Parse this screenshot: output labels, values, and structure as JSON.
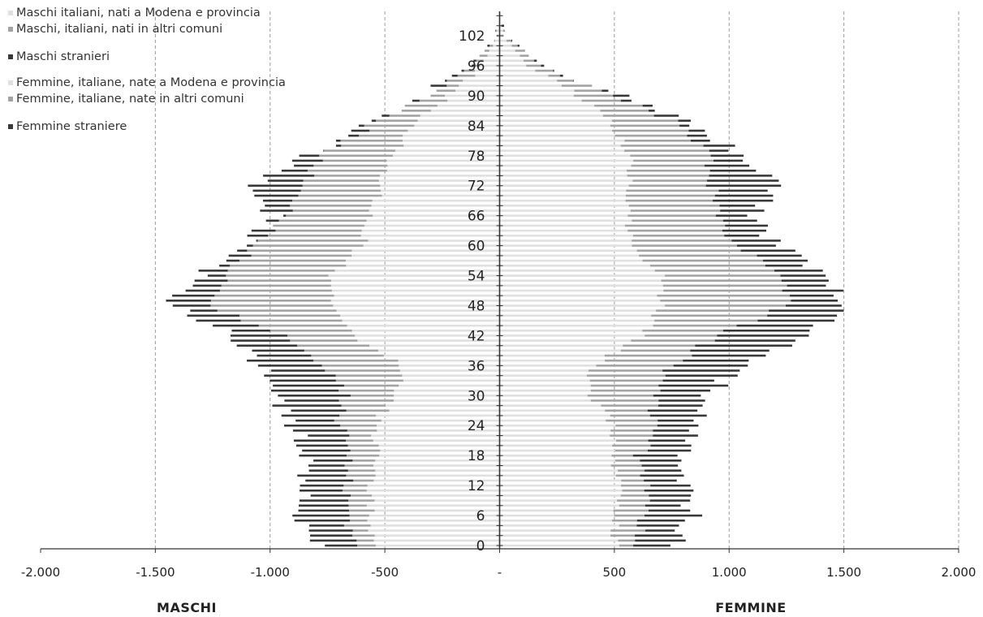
{
  "chart_data": {
    "type": "bar",
    "orientation": "horizontal",
    "layout": "population-pyramid",
    "xlim": [
      -2000,
      2000
    ],
    "x_ticks": [
      -2000,
      -1500,
      -1000,
      -500,
      0,
      500,
      1000,
      1500,
      2000
    ],
    "x_tick_labels": [
      "-2.000",
      "-1.500",
      "-1.000",
      "-500",
      "-",
      "500",
      "1.000",
      "1.500",
      "2.000"
    ],
    "ylim": [
      0,
      106
    ],
    "y_ticks": [
      0,
      6,
      12,
      18,
      24,
      30,
      36,
      42,
      48,
      54,
      60,
      66,
      72,
      78,
      84,
      90,
      96,
      102
    ],
    "grid": "vertical-dashed",
    "legend_position": "top-left",
    "side_labels": {
      "left": "MASCHI",
      "right": "FEMMINE"
    },
    "series": [
      {
        "name": "Maschi italiani, nati a Modena e provincia",
        "side": "left",
        "color": "#e0e0e0"
      },
      {
        "name": "Maschi, italiani, nati in altri comuni",
        "side": "left",
        "color": "#a3a3a3"
      },
      {
        "name": "Maschi stranieri",
        "side": "left",
        "color": "#383838"
      },
      {
        "name": "Femmine, italiane, nate a Modena e provincia",
        "side": "right",
        "color": "#e0e0e0"
      },
      {
        "name": "Femmine, italiane, nate in altri comuni",
        "side": "right",
        "color": "#a3a3a3"
      },
      {
        "name": "Femmine straniere",
        "side": "right",
        "color": "#383838"
      }
    ],
    "age_breakpoints": [
      0,
      6,
      12,
      18,
      24,
      30,
      36,
      42,
      48,
      54,
      60,
      66,
      72,
      78,
      84,
      90,
      96,
      102,
      106
    ],
    "male_modena": [
      550,
      560,
      570,
      540,
      550,
      450,
      420,
      650,
      730,
      730,
      600,
      560,
      520,
      470,
      380,
      220,
      80,
      10,
      0
    ],
    "male_other": [
      650,
      650,
      660,
      640,
      700,
      680,
      760,
      950,
      1250,
      1200,
      1050,
      930,
      840,
      780,
      560,
      320,
      120,
      15,
      0
    ],
    "male_foreign": [
      790,
      880,
      860,
      830,
      900,
      980,
      1040,
      1160,
      1430,
      1310,
      1100,
      980,
      1100,
      830,
      590,
      330,
      125,
      15,
      0
    ],
    "female_modena": [
      500,
      510,
      520,
      480,
      500,
      390,
      400,
      620,
      700,
      700,
      570,
      560,
      560,
      570,
      500,
      340,
      120,
      15,
      0
    ],
    "female_other": [
      610,
      620,
      630,
      610,
      670,
      660,
      740,
      950,
      1250,
      1230,
      1050,
      930,
      930,
      900,
      800,
      500,
      180,
      25,
      0
    ],
    "female_foreign": [
      770,
      840,
      820,
      790,
      840,
      900,
      1060,
      1340,
      1510,
      1440,
      1210,
      1100,
      1220,
      1060,
      860,
      530,
      190,
      25,
      0
    ]
  }
}
